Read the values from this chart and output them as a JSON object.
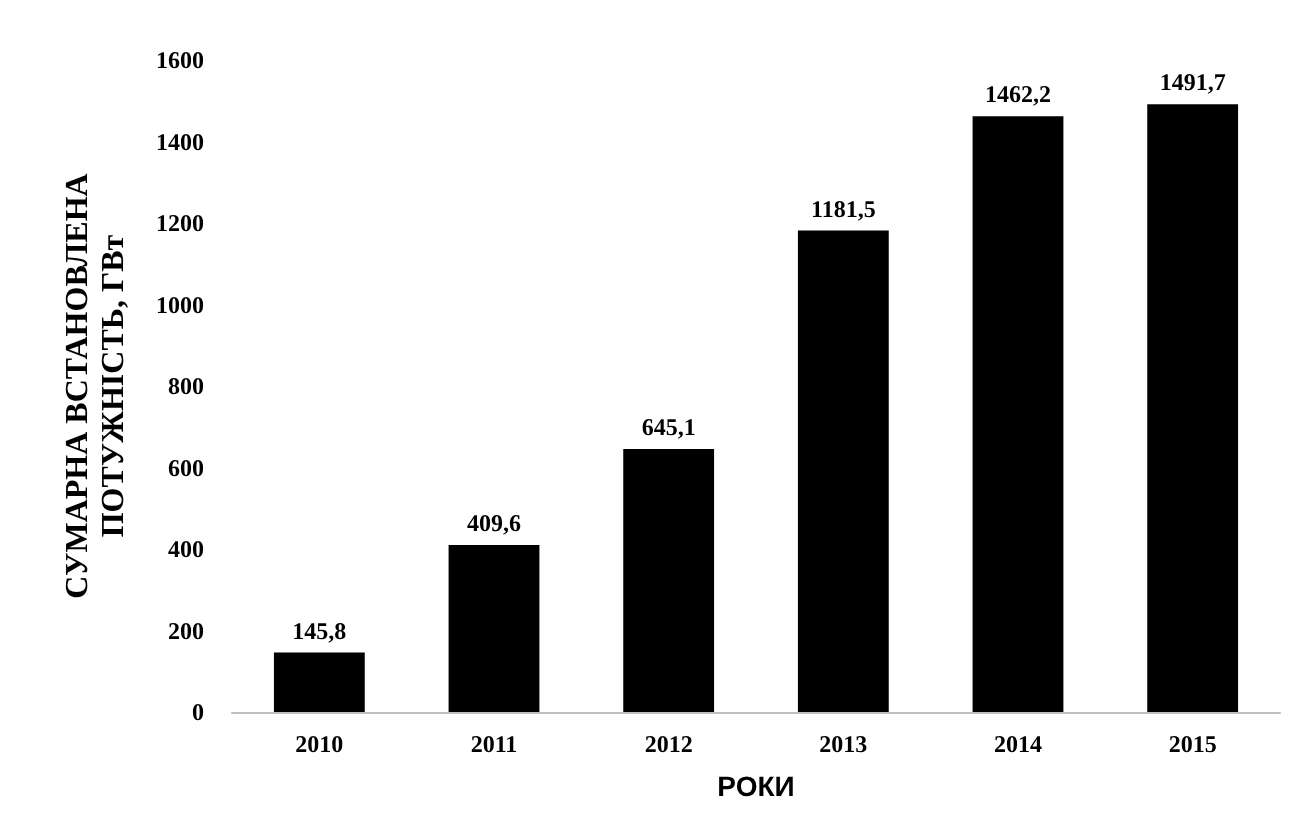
{
  "chart_data": {
    "type": "bar",
    "xlabel": "РОКИ",
    "ylabel": "СУМАРНА ВСТАНОВЛЕНА\nПОТУЖНІСТЬ, ГВт",
    "categories": [
      "2010",
      "2011",
      "2012",
      "2013",
      "2014",
      "2015"
    ],
    "values": [
      145.8,
      409.6,
      645.1,
      1181.5,
      1462.2,
      1491.7
    ],
    "value_labels": [
      "145,8",
      "409,6",
      "645,1",
      "1181,5",
      "1462,2",
      "1491,7"
    ],
    "color": "#000000",
    "ylim": [
      0,
      1600
    ],
    "yticks": [
      0,
      200,
      400,
      600,
      800,
      1000,
      1200,
      1400,
      1600
    ],
    "grid": false
  }
}
